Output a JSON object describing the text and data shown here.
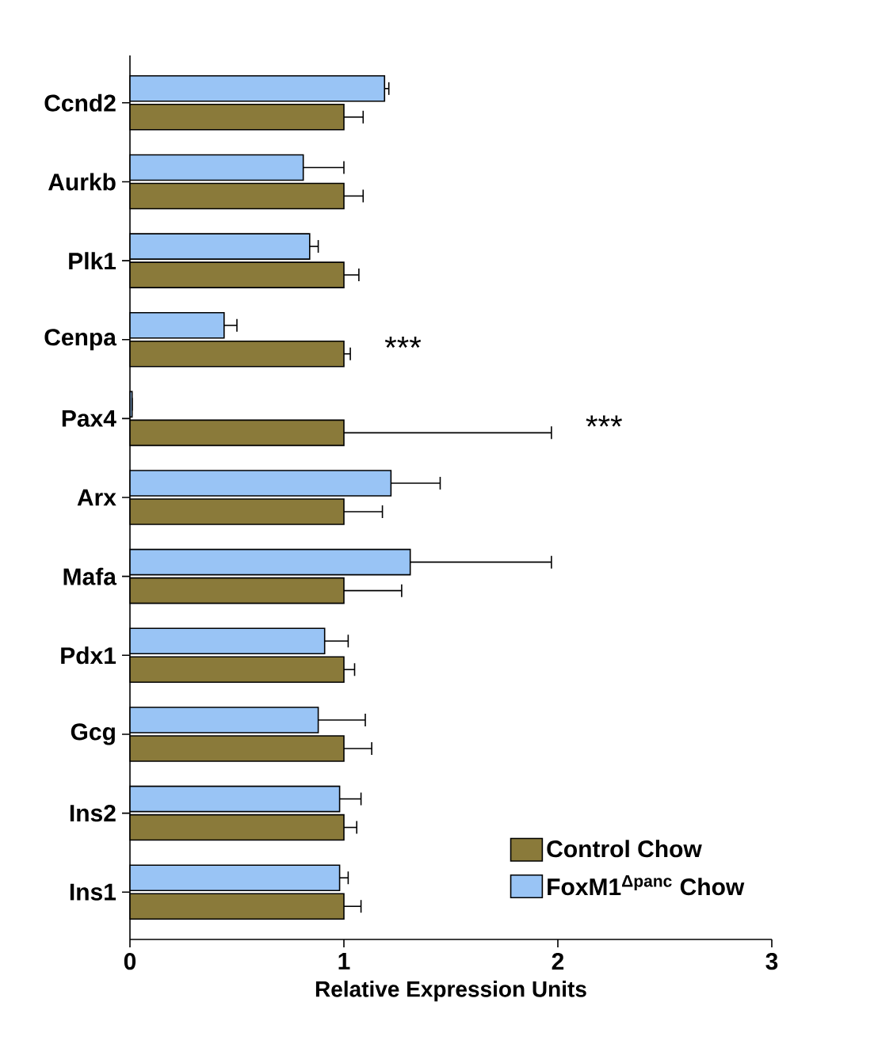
{
  "chart_data": {
    "type": "bar",
    "orientation": "horizontal",
    "xlabel": "Relative Expression Units",
    "categories": [
      "Ccnd2",
      "Aurkb",
      "Plk1",
      "Cenpa",
      "Pax4",
      "Arx",
      "Mafa",
      "Pdx1",
      "Gcg",
      "Ins2",
      "Ins1"
    ],
    "series": [
      {
        "name": "Control Chow",
        "color": "#8a7a3a",
        "values": [
          1,
          1,
          1,
          1,
          1,
          1,
          1,
          1,
          1,
          1,
          1
        ],
        "errors": [
          [
            1,
            1.09
          ],
          [
            1,
            1.09
          ],
          [
            1,
            1.07
          ],
          [
            1,
            1.03
          ],
          [
            1,
            1.97
          ],
          [
            1,
            1.18
          ],
          [
            1,
            1.27
          ],
          [
            1,
            1.05
          ],
          [
            1,
            1.13
          ],
          [
            1,
            1.06
          ],
          [
            1,
            1.08
          ]
        ]
      },
      {
        "name": "FoxM1$^{Δpanc}$ Chow",
        "color": "#99c4f5",
        "values": [
          1.19,
          0.81,
          0.84,
          0.44,
          0.01,
          1.22,
          1.31,
          0.91,
          0.88,
          0.98,
          0.98
        ],
        "errors": [
          [
            1.19,
            1.21
          ],
          [
            0.81,
            1.0
          ],
          [
            0.84,
            0.88
          ],
          [
            0.44,
            0.5
          ],
          [
            0.01,
            0.01
          ],
          [
            1.22,
            1.45
          ],
          [
            1.31,
            1.97
          ],
          [
            0.91,
            1.02
          ],
          [
            0.88,
            1.1
          ],
          [
            0.98,
            1.08
          ],
          [
            0.98,
            1.02
          ]
        ]
      }
    ],
    "xlim": [
      0,
      3
    ],
    "xticks": [
      0,
      1,
      2,
      3
    ],
    "annotations": [
      {
        "text": "***",
        "x": 1.03,
        "y": "Cenpa"
      },
      {
        "text": "***",
        "x": 1.97,
        "y": "Pax4"
      }
    ],
    "legend": "bottom right",
    "grid": false
  }
}
